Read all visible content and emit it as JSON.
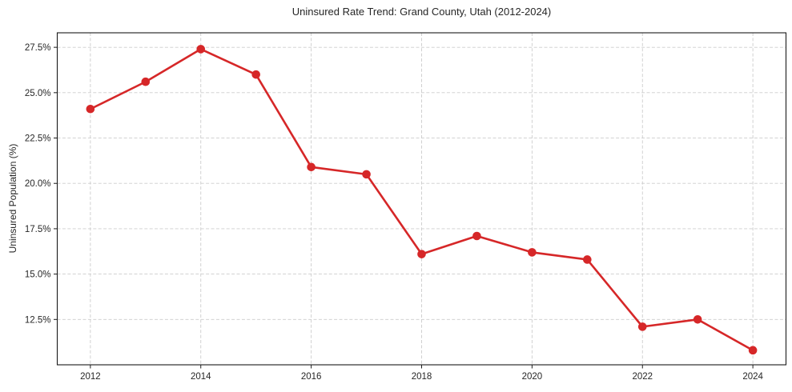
{
  "figure": {
    "background": "#ffffff"
  },
  "chart_data": {
    "type": "line",
    "title": "Uninsured Rate Trend: Grand County, Utah (2012-2024)",
    "xlabel": "",
    "ylabel": "Uninsured Population (%)",
    "x": [
      2012,
      2013,
      2014,
      2015,
      2016,
      2017,
      2018,
      2019,
      2020,
      2021,
      2022,
      2023,
      2024
    ],
    "series": [
      {
        "name": "Uninsured rate",
        "color": "#d62728",
        "marker": "circle",
        "values": [
          24.1,
          25.6,
          27.4,
          26.0,
          20.9,
          20.5,
          16.1,
          17.1,
          16.2,
          15.8,
          12.1,
          12.5,
          10.8
        ]
      }
    ],
    "xlim": [
      2011.4,
      2024.6
    ],
    "ylim": [
      10.0,
      28.3
    ],
    "x_tick_values": [
      2012,
      2014,
      2016,
      2018,
      2020,
      2022,
      2024
    ],
    "x_tick_labels": [
      "2012",
      "2014",
      "2016",
      "2018",
      "2020",
      "2022",
      "2024"
    ],
    "y_tick_values": [
      12.5,
      15.0,
      17.5,
      20.0,
      22.5,
      25.0,
      27.5
    ],
    "y_tick_labels": [
      "12.5%",
      "15.0%",
      "17.5%",
      "20.0%",
      "22.5%",
      "25.0%",
      "27.5%"
    ],
    "grid": true,
    "grid_style": "dashed",
    "legend_position": "none",
    "colors": {
      "line": "#d62728",
      "grid": "#cccccc",
      "text": "#262626",
      "spine": "#1a1a1a"
    }
  }
}
